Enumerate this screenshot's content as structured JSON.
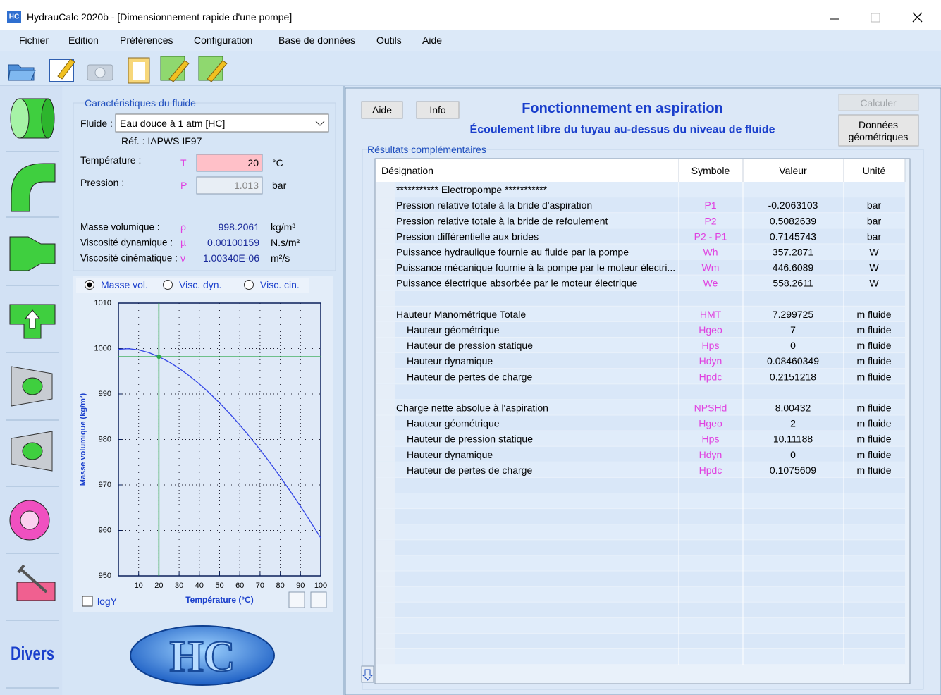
{
  "window": {
    "icon": "HC",
    "title": "HydrauCalc 2020b - [Dimensionnement rapide d'une pompe]"
  },
  "menu": [
    "Fichier",
    "Edition",
    "Préférences",
    "Configuration",
    "Base de données",
    "Outils",
    "Aide"
  ],
  "sidebar_text": "Divers",
  "fluid": {
    "group_title": "Caractéristiques du fluide",
    "fluid_label": "Fluide :",
    "fluid_value": "Eau douce à 1 atm [HC]",
    "reference": "Réf. : IAPWS IF97",
    "inputs": [
      {
        "label": "Température :",
        "symbol": "T",
        "value": "20",
        "unit": "°C",
        "editable": true
      },
      {
        "label": "Pression :",
        "symbol": "P",
        "value": "1.013",
        "unit": "bar",
        "editable": false
      }
    ],
    "properties": [
      {
        "label": "Masse volumique :",
        "symbol": "ρ",
        "value": "998.2061",
        "unit": "kg/m³"
      },
      {
        "label": "Viscosité dynamique :",
        "symbol": "µ",
        "value": "0.00100159",
        "unit": "N.s/m²"
      },
      {
        "label": "Viscosité cinématique :",
        "symbol": "ν",
        "value": "1.00340E-06",
        "unit": "m²/s"
      }
    ]
  },
  "chart_options": {
    "items": [
      "Masse vol.",
      "Visc. dyn.",
      "Visc. cin."
    ],
    "selected": 0,
    "logy_label": "logY"
  },
  "chart_data": {
    "type": "line",
    "xlabel": "Température (°C)",
    "ylabel": "Masse volumique (kg/m³)",
    "x": [
      0,
      5,
      10,
      15,
      20,
      25,
      30,
      35,
      40,
      45,
      50,
      55,
      60,
      65,
      70,
      75,
      80,
      85,
      90,
      95,
      100
    ],
    "values": [
      999.84,
      999.97,
      999.7,
      999.1,
      998.21,
      997.05,
      995.65,
      994.03,
      992.22,
      990.21,
      988.04,
      985.69,
      983.2,
      980.55,
      977.76,
      974.84,
      971.79,
      968.61,
      965.31,
      961.89,
      958.35
    ],
    "color": "#3346e6",
    "xlim": [
      0,
      100
    ],
    "ylim": [
      950,
      1010
    ],
    "xticks": [
      10,
      20,
      30,
      40,
      50,
      60,
      70,
      80,
      90,
      100
    ],
    "yticks": [
      950,
      960,
      970,
      980,
      990,
      1000,
      1010
    ],
    "grid": true,
    "logy": false,
    "marker": {
      "x": 20,
      "y": 998.2061,
      "color": "#2aa84a"
    }
  },
  "logo": "HC",
  "right": {
    "help_button": "Aide",
    "info_button": "Info",
    "title": "Fonctionnement en aspiration",
    "subtitle": "Écoulement libre du tuyau au-dessus du niveau de fluide",
    "calc_button": "Calculer",
    "geometry_button": [
      "Données",
      "géométriques"
    ]
  },
  "results": {
    "group_title": "Résultats complémentaires",
    "columns": [
      "Désignation",
      "Symbole",
      "Valeur",
      "Unité"
    ],
    "groups": [
      {
        "rows": [
          {
            "label": "*********** Electropompe ***********"
          },
          {
            "label": "Pression relative totale à la bride d'aspiration",
            "symbol": "P1",
            "value": "-0.2063103",
            "unit": "bar"
          },
          {
            "label": "Pression relative totale à la bride de refoulement",
            "symbol": "P2",
            "value": "0.5082639",
            "unit": "bar"
          },
          {
            "label": "Pression différentielle aux brides",
            "symbol": "P2 - P1",
            "value": "0.7145743",
            "unit": "bar"
          },
          {
            "label": "Puissance hydraulique fournie au fluide par la pompe",
            "symbol": "Wh",
            "value": "357.2871",
            "unit": "W"
          },
          {
            "label": "Puissance mécanique fournie à la pompe par le moteur électri...",
            "symbol": "Wm",
            "value": "446.6089",
            "unit": "W"
          },
          {
            "label": "Puissance électrique absorbée par le moteur électrique",
            "symbol": "We",
            "value": "558.2611",
            "unit": "W"
          }
        ]
      },
      {
        "rows": [
          {
            "label": "Hauteur Manométrique Totale",
            "symbol": "HMT",
            "value": "7.299725",
            "unit": "m fluide"
          },
          {
            "label": "Hauteur géométrique",
            "symbol": "Hgeo",
            "value": "7",
            "unit": "m fluide",
            "indent": true
          },
          {
            "label": "Hauteur de pression statique",
            "symbol": "Hps",
            "value": "0",
            "unit": "m fluide",
            "indent": true
          },
          {
            "label": "Hauteur dynamique",
            "symbol": "Hdyn",
            "value": "0.08460349",
            "unit": "m fluide",
            "indent": true
          },
          {
            "label": "Hauteur de pertes de charge",
            "symbol": "Hpdc",
            "value": "0.2151218",
            "unit": "m fluide",
            "indent": true
          }
        ]
      },
      {
        "rows": [
          {
            "label": "Charge nette absolue à l'aspiration",
            "symbol": "NPSHd",
            "value": "8.00432",
            "unit": "m fluide"
          },
          {
            "label": "Hauteur géométrique",
            "symbol": "Hgeo",
            "value": "2",
            "unit": "m fluide",
            "indent": true
          },
          {
            "label": "Hauteur de pression statique",
            "symbol": "Hps",
            "value": "10.11188",
            "unit": "m fluide",
            "indent": true
          },
          {
            "label": "Hauteur dynamique",
            "symbol": "Hdyn",
            "value": "0",
            "unit": "m fluide",
            "indent": true
          },
          {
            "label": "Hauteur de pertes de charge",
            "symbol": "Hpdc",
            "value": "0.1075609",
            "unit": "m fluide",
            "indent": true
          }
        ]
      }
    ]
  }
}
